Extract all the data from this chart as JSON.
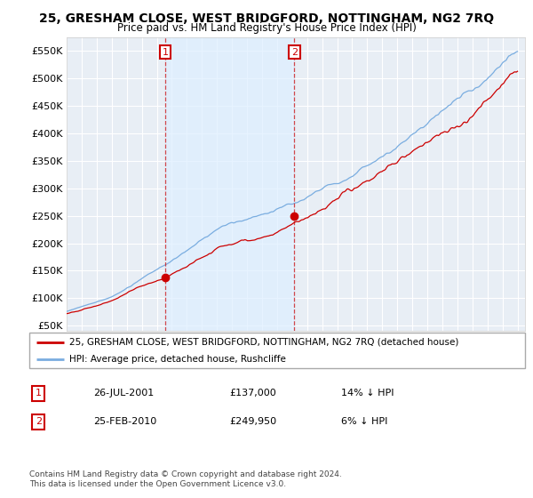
{
  "title": "25, GRESHAM CLOSE, WEST BRIDGFORD, NOTTINGHAM, NG2 7RQ",
  "subtitle": "Price paid vs. HM Land Registry's House Price Index (HPI)",
  "yticks": [
    50000,
    100000,
    150000,
    200000,
    250000,
    300000,
    350000,
    400000,
    450000,
    500000,
    550000
  ],
  "ytick_labels": [
    "£50K",
    "£100K",
    "£150K",
    "£200K",
    "£250K",
    "£300K",
    "£350K",
    "£400K",
    "£450K",
    "£500K",
    "£550K"
  ],
  "legend_line1": "25, GRESHAM CLOSE, WEST BRIDGFORD, NOTTINGHAM, NG2 7RQ (detached house)",
  "legend_line2": "HPI: Average price, detached house, Rushcliffe",
  "point1_date": "26-JUL-2001",
  "point1_price": "£137,000",
  "point1_pct": "14% ↓ HPI",
  "point2_date": "25-FEB-2010",
  "point2_price": "£249,950",
  "point2_pct": "6% ↓ HPI",
  "footer": "Contains HM Land Registry data © Crown copyright and database right 2024.\nThis data is licensed under the Open Government Licence v3.0.",
  "red_color": "#cc0000",
  "blue_color": "#7aade0",
  "shade_color": "#ddeeff",
  "point1_x": 2001.57,
  "point1_y": 137000,
  "point2_x": 2010.15,
  "point2_y": 249950,
  "ylim_bottom": 40000,
  "ylim_top": 575000,
  "xmin": 1995.0,
  "xmax": 2025.5,
  "background_color": "#e8eef5",
  "grid_color": "#ffffff"
}
